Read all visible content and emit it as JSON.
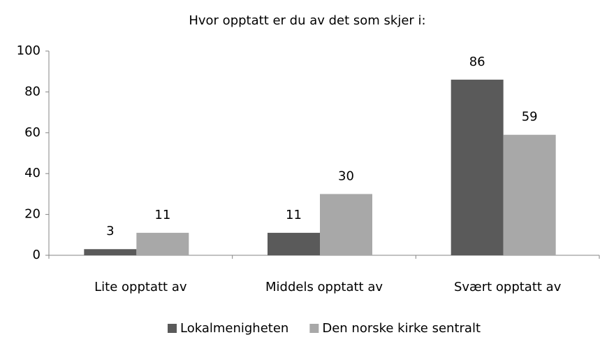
{
  "chart_data": {
    "type": "bar",
    "title": "Hvor opptatt er du av det som skjer i:",
    "categories": [
      "Lite opptatt av",
      "Middels opptatt av",
      "Svært opptatt av"
    ],
    "series": [
      {
        "name": "Lokalmenigheten",
        "color": "#5a5a5a",
        "values": [
          3,
          11,
          86
        ]
      },
      {
        "name": "Den norske kirke sentralt",
        "color": "#a8a8a8",
        "values": [
          11,
          30,
          59
        ]
      }
    ],
    "ylim": [
      0,
      100
    ],
    "yticks": [
      0,
      20,
      40,
      60,
      80,
      100
    ],
    "grid": false,
    "legend": "bottom"
  }
}
